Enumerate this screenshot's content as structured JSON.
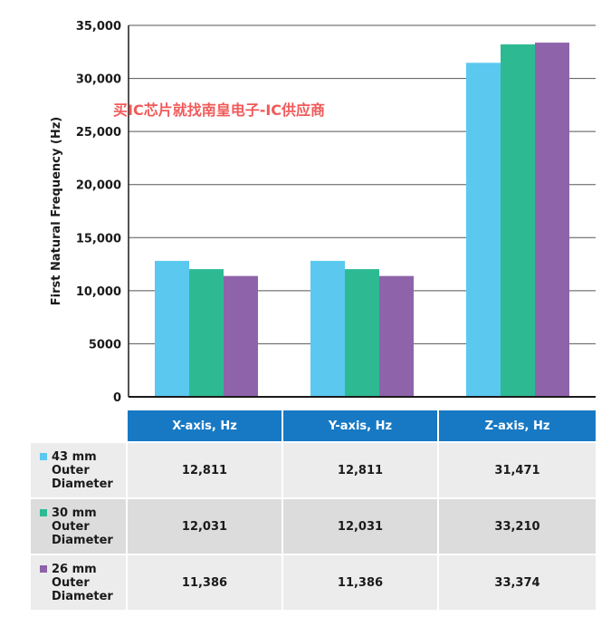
{
  "chart_data": {
    "type": "bar",
    "categories": [
      "X-axis, Hz",
      "Y-axis, Hz",
      "Z-axis, Hz"
    ],
    "series": [
      {
        "name": "43 mm Outer Diameter",
        "color": "#5bc8f0",
        "values": [
          12811,
          12811,
          31471
        ]
      },
      {
        "name": "30 mm Outer Diameter",
        "color": "#2dba93",
        "values": [
          12031,
          12031,
          33210
        ]
      },
      {
        "name": "26 mm Outer Diameter",
        "color": "#8e63aa",
        "values": [
          11386,
          11386,
          33374
        ]
      }
    ],
    "ylabel": "First Natural Frequency (Hz)",
    "ylim": [
      0,
      35000
    ],
    "yticks": [
      0,
      5000,
      10000,
      15000,
      20000,
      25000,
      30000,
      35000
    ],
    "ytick_labels": [
      "0",
      "5000",
      "10,000",
      "15,000",
      "20,000",
      "25,000",
      "30,000",
      "35,000"
    ],
    "grid": "horizontal",
    "xtick_labels_shown": false
  },
  "watermark": "买IC芯片就找南皇电子-IC供应商",
  "table": {
    "headers": [
      "X-axis, Hz",
      "Y-axis, Hz",
      "Z-axis, Hz"
    ],
    "rows": [
      {
        "label": "43 mm\nOuter\nDiameter",
        "swatch": "#5bc8f0",
        "values": [
          "12,811",
          "12,811",
          "31,471"
        ]
      },
      {
        "label": "30 mm\nOuter\nDiameter",
        "swatch": "#2dba93",
        "values": [
          "12,031",
          "12,031",
          "33,210"
        ]
      },
      {
        "label": "26 mm\nOuter\nDiameter",
        "swatch": "#8e63aa",
        "values": [
          "11,386",
          "11,386",
          "33,374"
        ]
      }
    ]
  }
}
